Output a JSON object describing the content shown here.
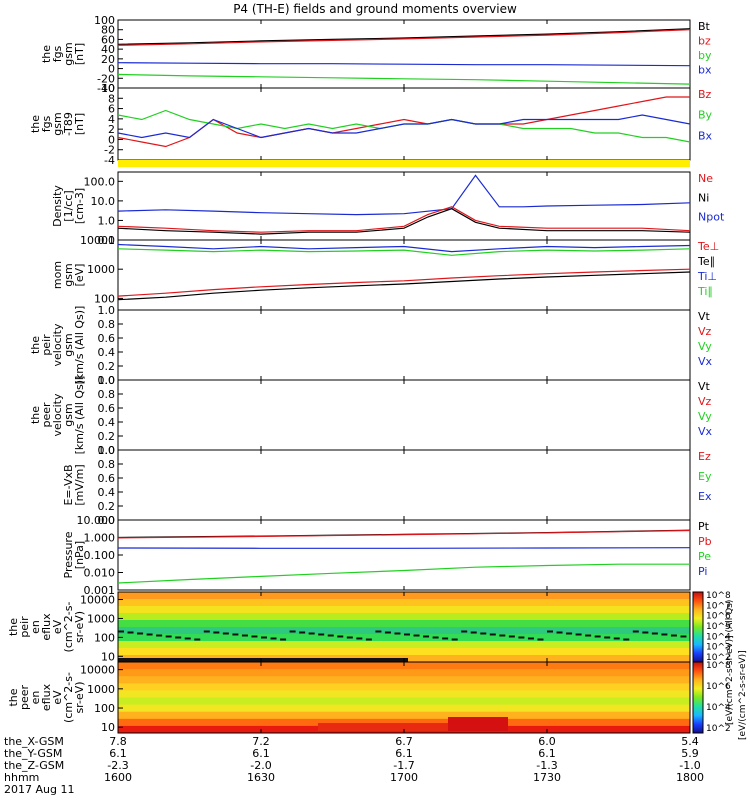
{
  "title": "P4 (TH-E) fields and ground moments overview",
  "time_axis": {
    "row_labels": [
      "the_X-GSM",
      "the_Y-GSM",
      "the_Z-GSM",
      "hhmm",
      "2017 Aug 11"
    ],
    "ticks": [
      {
        "x": "7.8",
        "y": "6.1",
        "z": "-2.3",
        "t": "1600"
      },
      {
        "x": "7.2",
        "y": "6.1",
        "z": "-2.0",
        "t": "1630"
      },
      {
        "x": "6.7",
        "y": "6.1",
        "z": "-1.7",
        "t": "1700"
      },
      {
        "x": "6.0",
        "y": "6.1",
        "z": "-1.3",
        "t": "1730"
      },
      {
        "x": "5.4",
        "y": "5.9",
        "z": "-1.0",
        "t": "1800"
      }
    ]
  },
  "colors": {
    "black": "#000000",
    "red": "#e0161b",
    "green": "#22d022",
    "blue": "#1a2bd4",
    "yellow": "#ffee00"
  },
  "colorbar": {
    "ticks": [
      "10^8",
      "10^7",
      "10^6",
      "10^5",
      "10^4",
      "10^3",
      "10^2"
    ],
    "ticks_lower": [
      "10^8",
      "10^6",
      "10^4",
      "10^2"
    ],
    "label": "[eV/(cm^2-s-sr-eV)]",
    "label2": "[eV/(cm^2-s-sr-eV)] (All Qs)"
  },
  "chart_data": [
    {
      "type": "line",
      "id": "fgs_gsm",
      "ylabel": [
        "the",
        "fgs",
        "gsm",
        "[nT]"
      ],
      "yticks": [
        "100",
        "80",
        "60",
        "40",
        "20",
        "0",
        "-20",
        "-40"
      ],
      "ylim": [
        -40,
        100
      ],
      "legend": [
        {
          "name": "Bt",
          "color": "black"
        },
        {
          "name": "bz",
          "color": "red"
        },
        {
          "name": "by",
          "color": "green"
        },
        {
          "name": "bx",
          "color": "blue"
        }
      ],
      "series": [
        {
          "name": "Bt",
          "color": "black",
          "x": [
            1600,
            1615,
            1630,
            1645,
            1700,
            1715,
            1730,
            1745,
            1800
          ],
          "y": [
            50,
            53,
            57,
            60,
            63,
            67,
            71,
            76,
            82
          ]
        },
        {
          "name": "bz",
          "color": "red",
          "x": [
            1600,
            1615,
            1630,
            1645,
            1700,
            1715,
            1730,
            1745,
            1800
          ],
          "y": [
            48,
            51,
            55,
            58,
            61,
            65,
            69,
            74,
            80
          ]
        },
        {
          "name": "by",
          "color": "green",
          "x": [
            1600,
            1615,
            1630,
            1645,
            1700,
            1715,
            1730,
            1745,
            1800
          ],
          "y": [
            -12,
            -15,
            -17,
            -19,
            -21,
            -23,
            -26,
            -29,
            -32
          ]
        },
        {
          "name": "bx",
          "color": "blue",
          "x": [
            1600,
            1615,
            1630,
            1645,
            1700,
            1715,
            1730,
            1745,
            1800
          ],
          "y": [
            12,
            11,
            10,
            10,
            9,
            8,
            8,
            7,
            6
          ]
        }
      ]
    },
    {
      "type": "line",
      "id": "fgs_gsm_t89",
      "ylabel": [
        "the",
        "fgs",
        "gsm",
        "-T89",
        "[nT]"
      ],
      "yticks": [
        "10",
        "8",
        "6",
        "4",
        "2",
        "0",
        "-2",
        "-4"
      ],
      "ylim": [
        -6,
        10
      ],
      "legend": [
        {
          "name": "Bz",
          "color": "red"
        },
        {
          "name": "By",
          "color": "green"
        },
        {
          "name": "Bx",
          "color": "blue"
        }
      ],
      "series": [
        {
          "name": "Bz",
          "color": "red",
          "x": [
            1600,
            1605,
            1610,
            1615,
            1620,
            1625,
            1630,
            1635,
            1640,
            1645,
            1650,
            1655,
            1700,
            1705,
            1710,
            1715,
            1720,
            1725,
            1730,
            1735,
            1740,
            1745,
            1750,
            1755,
            1800
          ],
          "y": [
            -1,
            -2,
            -3,
            -1,
            3,
            0,
            -1,
            0,
            1,
            0,
            1,
            2,
            3,
            2,
            3,
            2,
            2,
            2,
            3,
            4,
            5,
            6,
            7,
            8,
            8
          ]
        },
        {
          "name": "By",
          "color": "green",
          "x": [
            1600,
            1605,
            1610,
            1615,
            1620,
            1625,
            1630,
            1635,
            1640,
            1645,
            1650,
            1655,
            1700,
            1705,
            1710,
            1715,
            1720,
            1725,
            1730,
            1735,
            1740,
            1745,
            1750,
            1755,
            1800
          ],
          "y": [
            4,
            3,
            5,
            3,
            2,
            1,
            2,
            1,
            2,
            1,
            2,
            1,
            2,
            2,
            3,
            2,
            2,
            1,
            1,
            1,
            0,
            0,
            -1,
            -1,
            -2
          ]
        },
        {
          "name": "Bx",
          "color": "blue",
          "x": [
            1600,
            1605,
            1610,
            1615,
            1620,
            1625,
            1630,
            1635,
            1640,
            1645,
            1650,
            1655,
            1700,
            1705,
            1710,
            1715,
            1720,
            1725,
            1730,
            1735,
            1740,
            1745,
            1750,
            1755,
            1800
          ],
          "y": [
            0,
            -1,
            0,
            -1,
            3,
            1,
            -1,
            0,
            1,
            0,
            0,
            1,
            2,
            2,
            3,
            2,
            2,
            3,
            3,
            3,
            3,
            3,
            4,
            3,
            2
          ]
        }
      ]
    },
    {
      "type": "line",
      "id": "density",
      "yscale": "log",
      "ylabel": [
        "Density",
        "[1/cc]",
        "[cm-3]"
      ],
      "yticks": [
        "100.0",
        "10.0",
        "1.0",
        "0.1"
      ],
      "ylim": [
        0.1,
        300
      ],
      "legend": [
        {
          "name": "Ne",
          "color": "red"
        },
        {
          "name": "Ni",
          "color": "black"
        },
        {
          "name": "Npot",
          "color": "blue"
        }
      ],
      "series": [
        {
          "name": "Npot",
          "color": "blue",
          "x": [
            1600,
            1610,
            1620,
            1630,
            1640,
            1650,
            1700,
            1710,
            1715,
            1720,
            1725,
            1730,
            1740,
            1750,
            1800
          ],
          "y": [
            3,
            3.5,
            3,
            2.5,
            2.2,
            2,
            2.2,
            4,
            200,
            5,
            5,
            5.5,
            6,
            6.5,
            8
          ]
        },
        {
          "name": "Ne",
          "color": "red",
          "x": [
            1600,
            1610,
            1620,
            1630,
            1640,
            1650,
            1700,
            1705,
            1710,
            1715,
            1720,
            1730,
            1740,
            1750,
            1800
          ],
          "y": [
            0.5,
            0.4,
            0.3,
            0.25,
            0.3,
            0.3,
            0.5,
            2,
            5,
            1,
            0.5,
            0.4,
            0.4,
            0.4,
            0.3
          ]
        },
        {
          "name": "Ni",
          "color": "black",
          "x": [
            1600,
            1610,
            1620,
            1630,
            1640,
            1650,
            1700,
            1705,
            1710,
            1715,
            1720,
            1730,
            1740,
            1750,
            1800
          ],
          "y": [
            0.4,
            0.3,
            0.25,
            0.2,
            0.25,
            0.25,
            0.4,
            1.5,
            4,
            0.8,
            0.4,
            0.3,
            0.3,
            0.3,
            0.25
          ]
        }
      ]
    },
    {
      "type": "line",
      "id": "temperature",
      "yscale": "log",
      "ylabel": [
        "mom",
        "gsm",
        "[eV]"
      ],
      "yticks": [
        "10000",
        "1000",
        "100"
      ],
      "ylim": [
        40,
        10000
      ],
      "legend": [
        {
          "name": "Te⊥",
          "color": "red"
        },
        {
          "name": "Te∥",
          "color": "black"
        },
        {
          "name": "Ti⊥",
          "color": "blue"
        },
        {
          "name": "Ti∥",
          "color": "green"
        }
      ],
      "series": [
        {
          "name": "Ti⊥",
          "color": "blue",
          "x": [
            1600,
            1610,
            1620,
            1630,
            1640,
            1650,
            1700,
            1710,
            1720,
            1730,
            1740,
            1750,
            1800
          ],
          "y": [
            7000,
            6000,
            5000,
            6000,
            5000,
            5500,
            6000,
            4000,
            5000,
            6000,
            5500,
            6000,
            6500
          ]
        },
        {
          "name": "Ti∥",
          "color": "green",
          "x": [
            1600,
            1610,
            1620,
            1630,
            1640,
            1650,
            1700,
            1710,
            1720,
            1730,
            1740,
            1750,
            1800
          ],
          "y": [
            5000,
            4500,
            4000,
            4500,
            4000,
            4200,
            4500,
            3000,
            4000,
            4500,
            4200,
            4500,
            5000
          ]
        },
        {
          "name": "Te⊥",
          "color": "red",
          "x": [
            1600,
            1610,
            1620,
            1630,
            1640,
            1650,
            1700,
            1710,
            1720,
            1730,
            1740,
            1750,
            1800
          ],
          "y": [
            120,
            150,
            200,
            250,
            300,
            350,
            400,
            500,
            600,
            700,
            800,
            900,
            1000
          ]
        },
        {
          "name": "Te∥",
          "color": "black",
          "x": [
            1600,
            1610,
            1620,
            1630,
            1640,
            1650,
            1700,
            1710,
            1720,
            1730,
            1740,
            1750,
            1800
          ],
          "y": [
            90,
            110,
            150,
            190,
            230,
            270,
            310,
            380,
            460,
            540,
            620,
            700,
            800
          ]
        }
      ]
    },
    {
      "type": "line",
      "id": "peir_velocity",
      "empty": true,
      "ylabel": [
        "the",
        "peir",
        "velocity",
        "gsm",
        "[km/s (All Qs)]"
      ],
      "yticks": [
        "1.0",
        "0.8",
        "0.6",
        "0.4",
        "0.2",
        "0.0"
      ],
      "ylim": [
        0,
        1
      ],
      "legend": [
        {
          "name": "Vt",
          "color": "black"
        },
        {
          "name": "Vz",
          "color": "red"
        },
        {
          "name": "Vy",
          "color": "green"
        },
        {
          "name": "Vx",
          "color": "blue"
        }
      ],
      "series": []
    },
    {
      "type": "line",
      "id": "peer_velocity",
      "empty": true,
      "ylabel": [
        "the",
        "peer",
        "velocity",
        "gsm",
        "[km/s (All Qs)]"
      ],
      "yticks": [
        "1.0",
        "0.8",
        "0.6",
        "0.4",
        "0.2",
        "0.0"
      ],
      "ylim": [
        0,
        1
      ],
      "legend": [
        {
          "name": "Vt",
          "color": "black"
        },
        {
          "name": "Vz",
          "color": "red"
        },
        {
          "name": "Vy",
          "color": "green"
        },
        {
          "name": "Vx",
          "color": "blue"
        }
      ],
      "series": []
    },
    {
      "type": "line",
      "id": "e_vxb",
      "empty": true,
      "ylabel": [
        "E=-VxB",
        "[mV/m]"
      ],
      "yticks": [
        "1.0",
        "0.8",
        "0.6",
        "0.4",
        "0.2",
        "0.0"
      ],
      "ylim": [
        0,
        1
      ],
      "legend": [
        {
          "name": "Ez",
          "color": "red"
        },
        {
          "name": "Ey",
          "color": "green"
        },
        {
          "name": "Ex",
          "color": "blue"
        }
      ],
      "series": []
    },
    {
      "type": "line",
      "id": "pressure",
      "yscale": "log",
      "ylabel": [
        "Pressure",
        "[nPa]"
      ],
      "yticks": [
        "10.000",
        "1.000",
        "0.100",
        "0.010",
        "0.001"
      ],
      "ylim": [
        0.001,
        10
      ],
      "legend": [
        {
          "name": "Pt",
          "color": "black"
        },
        {
          "name": "Pb",
          "color": "red"
        },
        {
          "name": "Pe",
          "color": "green"
        },
        {
          "name": "Pi",
          "color": "blue"
        }
      ],
      "series": [
        {
          "name": "Pt",
          "color": "black",
          "x": [
            1600,
            1630,
            1700,
            1730,
            1800
          ],
          "y": [
            1.0,
            1.2,
            1.5,
            1.9,
            2.6
          ]
        },
        {
          "name": "Pb",
          "color": "red",
          "x": [
            1600,
            1630,
            1700,
            1730,
            1800
          ],
          "y": [
            0.95,
            1.15,
            1.45,
            1.85,
            2.5
          ]
        },
        {
          "name": "Pi",
          "color": "blue",
          "x": [
            1600,
            1630,
            1700,
            1730,
            1800
          ],
          "y": [
            0.25,
            0.24,
            0.24,
            0.25,
            0.26
          ]
        },
        {
          "name": "Pe",
          "color": "green",
          "x": [
            1600,
            1615,
            1630,
            1645,
            1700,
            1715,
            1730,
            1745,
            1800
          ],
          "y": [
            0.0025,
            0.004,
            0.006,
            0.009,
            0.013,
            0.02,
            0.025,
            0.03,
            0.03
          ]
        }
      ]
    },
    {
      "type": "heatmap",
      "id": "peir_eflux",
      "yscale": "log",
      "ylabel": [
        "the",
        "peir",
        "en",
        "eflux",
        "eV",
        "(cm^2-s-",
        "sr-eV)"
      ],
      "yticks": [
        "10000",
        "1000",
        "100",
        "10"
      ],
      "ylim": [
        5,
        25000
      ],
      "colorbar_range": [
        "10^2",
        "10^8"
      ]
    },
    {
      "type": "heatmap",
      "id": "peer_eflux",
      "yscale": "log",
      "ylabel": [
        "the",
        "peer",
        "en",
        "eflux",
        "eV",
        "(cm^2-s-",
        "sr-eV)"
      ],
      "yticks": [
        "10000",
        "1000",
        "100",
        "10"
      ],
      "ylim": [
        5,
        25000
      ],
      "colorbar_range": [
        "10^2",
        "10^8"
      ]
    }
  ]
}
